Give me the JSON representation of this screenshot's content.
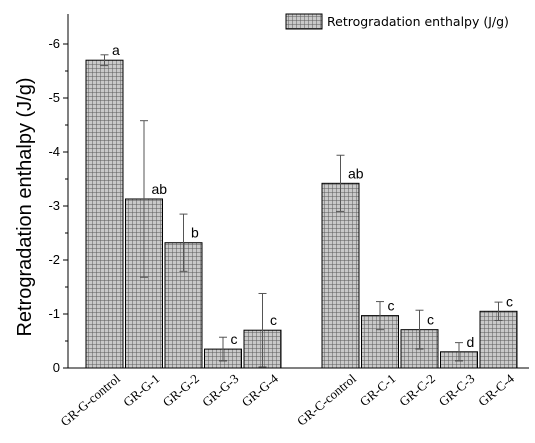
{
  "chart_data": {
    "type": "bar",
    "ylabel": "Retrogradation enthalpy (J/g)",
    "ylim": [
      0,
      -6.5
    ],
    "yticks": [
      0,
      -1,
      -2,
      -3,
      -4,
      -5,
      -6
    ],
    "ytick_labels": [
      "0",
      "-1",
      "-2",
      "-3",
      "-4",
      "-5",
      "-6"
    ],
    "legend": {
      "label": "Retrogradation enthalpy (J/g)",
      "position": "top-right"
    },
    "groups": [
      {
        "bars": [
          {
            "category": "GR-G-control",
            "value": -5.7,
            "error": 0.1,
            "label": "a"
          },
          {
            "category": "GR-G-1",
            "value": -3.13,
            "error": 1.45,
            "label": "ab"
          },
          {
            "category": "GR-G-2",
            "value": -2.32,
            "error": 0.53,
            "label": "b"
          },
          {
            "category": "GR-G-3",
            "value": -0.35,
            "error": 0.22,
            "label": "c"
          },
          {
            "category": "GR-G-4",
            "value": -0.7,
            "error": 0.68,
            "label": "c"
          }
        ]
      },
      {
        "bars": [
          {
            "category": "GR-C-control",
            "value": -3.42,
            "error": 0.52,
            "label": "ab"
          },
          {
            "category": "GR-C-1",
            "value": -0.97,
            "error": 0.26,
            "label": "c"
          },
          {
            "category": "GR-C-2",
            "value": -0.71,
            "error": 0.36,
            "label": "c"
          },
          {
            "category": "GR-C-3",
            "value": -0.3,
            "error": 0.17,
            "label": "d"
          },
          {
            "category": "GR-C-4",
            "value": -1.05,
            "error": 0.17,
            "label": "c"
          }
        ]
      }
    ]
  }
}
